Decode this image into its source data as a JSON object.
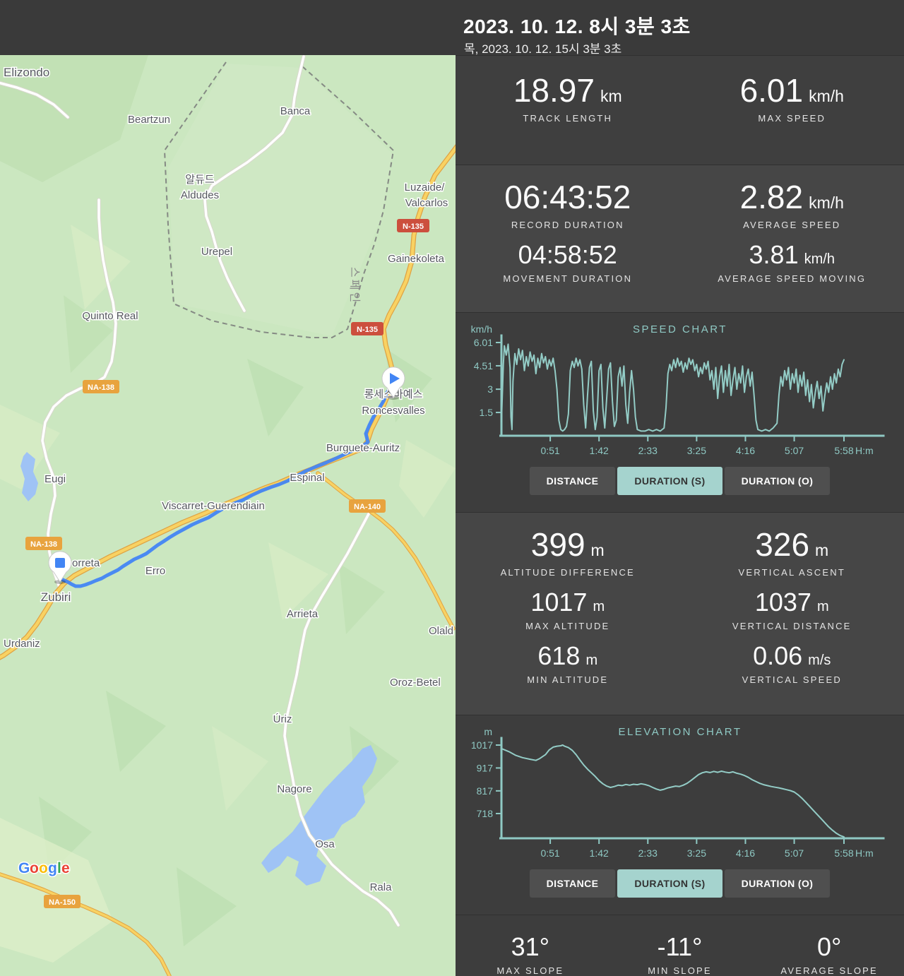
{
  "header": {
    "title": "2023. 10. 12. 8시 3분 3초",
    "subtitle": "목, 2023. 10. 12. 15시 3분 3초"
  },
  "stats": {
    "track_length": {
      "value": "18.97",
      "unit": "km",
      "label": "TRACK LENGTH"
    },
    "max_speed": {
      "value": "6.01",
      "unit": "km/h",
      "label": "MAX SPEED"
    },
    "record_duration": {
      "value": "06:43:52",
      "label": "RECORD DURATION"
    },
    "average_speed": {
      "value": "2.82",
      "unit": "km/h",
      "label": "AVERAGE SPEED"
    },
    "movement_duration": {
      "value": "04:58:52",
      "label": "MOVEMENT DURATION"
    },
    "average_speed_moving": {
      "value": "3.81",
      "unit": "km/h",
      "label": "AVERAGE SPEED MOVING"
    },
    "altitude_difference": {
      "value": "399",
      "unit": "m",
      "label": "ALTITUDE DIFFERENCE"
    },
    "vertical_ascent": {
      "value": "326",
      "unit": "m",
      "label": "VERTICAL ASCENT"
    },
    "max_altitude": {
      "value": "1017",
      "unit": "m",
      "label": "MAX ALTITUDE"
    },
    "vertical_distance": {
      "value": "1037",
      "unit": "m",
      "label": "VERTICAL DISTANCE"
    },
    "min_altitude": {
      "value": "618",
      "unit": "m",
      "label": "MIN ALTITUDE"
    },
    "vertical_speed": {
      "value": "0.06",
      "unit": "m/s",
      "label": "VERTICAL SPEED"
    },
    "max_slope": {
      "value": "31°",
      "label": "MAX SLOPE"
    },
    "min_slope": {
      "value": "-11°",
      "label": "MIN SLOPE"
    },
    "average_slope": {
      "value": "0°",
      "label": "AVERAGE SLOPE"
    }
  },
  "buttons": {
    "distance": "DISTANCE",
    "duration_s": "DURATION (S)",
    "duration_o": "DURATION (O)"
  },
  "chart_data": [
    {
      "type": "line",
      "title": "SPEED CHART",
      "unit": "km/h",
      "xlabel": "H:m",
      "vmin": 0,
      "vmax": 6.01,
      "xmax": 358,
      "yticks": [
        [
          6.01,
          "6.01"
        ],
        [
          4.51,
          "4.51"
        ],
        [
          3,
          "3"
        ],
        [
          1.5,
          "1.5"
        ]
      ],
      "xticks": [
        [
          51,
          "0:51"
        ],
        [
          102,
          "1:42"
        ],
        [
          153,
          "2:33"
        ],
        [
          204,
          "3:25"
        ],
        [
          255,
          "4:16"
        ],
        [
          306,
          "5:07"
        ],
        [
          358,
          "5:58"
        ]
      ],
      "points": [
        [
          0,
          0.9
        ],
        [
          2,
          4.6
        ],
        [
          3,
          5.8
        ],
        [
          5,
          5.2
        ],
        [
          7,
          5.9
        ],
        [
          9,
          4.4
        ],
        [
          10,
          1.2
        ],
        [
          11,
          0.4
        ],
        [
          12,
          3.5
        ],
        [
          14,
          5.3
        ],
        [
          16,
          4.6
        ],
        [
          18,
          5.6
        ],
        [
          20,
          4.9
        ],
        [
          22,
          5.5
        ],
        [
          24,
          4.2
        ],
        [
          26,
          5.1
        ],
        [
          28,
          4.5
        ],
        [
          30,
          5.4
        ],
        [
          32,
          4.8
        ],
        [
          34,
          5.2
        ],
        [
          36,
          4.0
        ],
        [
          38,
          5.0
        ],
        [
          40,
          4.4
        ],
        [
          42,
          5.3
        ],
        [
          44,
          4.7
        ],
        [
          46,
          5.1
        ],
        [
          48,
          4.3
        ],
        [
          50,
          4.9
        ],
        [
          52,
          4.5
        ],
        [
          54,
          5.0
        ],
        [
          56,
          4.2
        ],
        [
          58,
          3.0
        ],
        [
          60,
          1.0
        ],
        [
          62,
          0.4
        ],
        [
          64,
          0.3
        ],
        [
          66,
          0.4
        ],
        [
          68,
          0.6
        ],
        [
          70,
          1.4
        ],
        [
          72,
          4.2
        ],
        [
          74,
          4.8
        ],
        [
          76,
          4.4
        ],
        [
          78,
          5.0
        ],
        [
          80,
          4.5
        ],
        [
          82,
          4.9
        ],
        [
          84,
          4.3
        ],
        [
          86,
          2.0
        ],
        [
          88,
          0.5
        ],
        [
          90,
          2.6
        ],
        [
          92,
          4.4
        ],
        [
          94,
          4.8
        ],
        [
          96,
          1.6
        ],
        [
          98,
          0.4
        ],
        [
          100,
          1.2
        ],
        [
          102,
          4.2
        ],
        [
          104,
          4.6
        ],
        [
          106,
          1.8
        ],
        [
          108,
          0.5
        ],
        [
          110,
          2.4
        ],
        [
          112,
          4.3
        ],
        [
          114,
          4.7
        ],
        [
          116,
          2.2
        ],
        [
          118,
          0.6
        ],
        [
          120,
          1.0
        ],
        [
          122,
          3.8
        ],
        [
          124,
          4.4
        ],
        [
          126,
          3.2
        ],
        [
          128,
          4.5
        ],
        [
          130,
          2.0
        ],
        [
          132,
          0.8
        ],
        [
          134,
          2.8
        ],
        [
          136,
          4.2
        ],
        [
          138,
          3.0
        ],
        [
          140,
          1.2
        ],
        [
          142,
          0.4
        ],
        [
          146,
          0.3
        ],
        [
          150,
          0.3
        ],
        [
          154,
          0.4
        ],
        [
          158,
          0.3
        ],
        [
          162,
          0.4
        ],
        [
          166,
          0.3
        ],
        [
          170,
          0.5
        ],
        [
          172,
          1.8
        ],
        [
          174,
          4.0
        ],
        [
          176,
          4.6
        ],
        [
          178,
          4.2
        ],
        [
          180,
          4.9
        ],
        [
          182,
          4.4
        ],
        [
          184,
          5.0
        ],
        [
          186,
          4.5
        ],
        [
          188,
          4.8
        ],
        [
          190,
          4.1
        ],
        [
          192,
          4.7
        ],
        [
          194,
          4.3
        ],
        [
          196,
          5.0
        ],
        [
          198,
          4.6
        ],
        [
          200,
          4.9
        ],
        [
          202,
          4.2
        ],
        [
          204,
          4.6
        ],
        [
          206,
          3.8
        ],
        [
          208,
          4.4
        ],
        [
          210,
          4.0
        ],
        [
          212,
          4.7
        ],
        [
          214,
          4.3
        ],
        [
          216,
          4.8
        ],
        [
          218,
          3.6
        ],
        [
          220,
          4.2
        ],
        [
          222,
          3.0
        ],
        [
          224,
          4.4
        ],
        [
          226,
          2.4
        ],
        [
          228,
          3.8
        ],
        [
          230,
          4.5
        ],
        [
          232,
          2.8
        ],
        [
          234,
          4.2
        ],
        [
          236,
          3.2
        ],
        [
          238,
          4.6
        ],
        [
          240,
          2.6
        ],
        [
          242,
          3.6
        ],
        [
          244,
          4.4
        ],
        [
          246,
          3.0
        ],
        [
          248,
          4.0
        ],
        [
          250,
          3.4
        ],
        [
          252,
          4.5
        ],
        [
          254,
          2.8
        ],
        [
          256,
          3.8
        ],
        [
          258,
          4.3
        ],
        [
          260,
          3.2
        ],
        [
          262,
          4.1
        ],
        [
          264,
          2.6
        ],
        [
          266,
          1.0
        ],
        [
          268,
          0.4
        ],
        [
          272,
          0.3
        ],
        [
          276,
          0.4
        ],
        [
          280,
          0.3
        ],
        [
          284,
          0.5
        ],
        [
          288,
          0.8
        ],
        [
          290,
          2.6
        ],
        [
          292,
          3.8
        ],
        [
          294,
          3.2
        ],
        [
          296,
          4.2
        ],
        [
          298,
          3.6
        ],
        [
          300,
          4.4
        ],
        [
          302,
          3.0
        ],
        [
          304,
          4.0
        ],
        [
          306,
          3.4
        ],
        [
          308,
          4.3
        ],
        [
          310,
          2.8
        ],
        [
          312,
          3.9
        ],
        [
          314,
          3.2
        ],
        [
          316,
          4.1
        ],
        [
          318,
          2.6
        ],
        [
          320,
          3.6
        ],
        [
          322,
          2.2
        ],
        [
          324,
          3.3
        ],
        [
          326,
          1.8
        ],
        [
          328,
          2.8
        ],
        [
          330,
          3.5
        ],
        [
          332,
          2.4
        ],
        [
          334,
          3.2
        ],
        [
          336,
          1.6
        ],
        [
          338,
          2.6
        ],
        [
          340,
          3.4
        ],
        [
          342,
          2.8
        ],
        [
          344,
          3.8
        ],
        [
          346,
          3.0
        ],
        [
          348,
          4.0
        ],
        [
          350,
          3.4
        ],
        [
          352,
          4.3
        ],
        [
          354,
          3.8
        ],
        [
          356,
          4.6
        ],
        [
          358,
          4.9
        ]
      ]
    },
    {
      "type": "line",
      "title": "ELEVATION CHART",
      "unit": "m",
      "xlabel": "H:m",
      "vmin": 610,
      "vmax": 1017,
      "xmax": 358,
      "yticks": [
        [
          1017,
          "1017"
        ],
        [
          917,
          "917"
        ],
        [
          817,
          "817"
        ],
        [
          718,
          "718"
        ]
      ],
      "xticks": [
        [
          51,
          "0:51"
        ],
        [
          102,
          "1:42"
        ],
        [
          153,
          "2:33"
        ],
        [
          204,
          "3:25"
        ],
        [
          255,
          "4:16"
        ],
        [
          306,
          "5:07"
        ],
        [
          358,
          "5:58"
        ]
      ],
      "points": [
        [
          0,
          1002
        ],
        [
          8,
          988
        ],
        [
          15,
          972
        ],
        [
          22,
          962
        ],
        [
          30,
          955
        ],
        [
          36,
          950
        ],
        [
          40,
          958
        ],
        [
          46,
          975
        ],
        [
          50,
          996
        ],
        [
          54,
          1008
        ],
        [
          58,
          1012
        ],
        [
          62,
          1014
        ],
        [
          64,
          1017
        ],
        [
          66,
          1012
        ],
        [
          70,
          1006
        ],
        [
          74,
          994
        ],
        [
          78,
          975
        ],
        [
          82,
          952
        ],
        [
          86,
          930
        ],
        [
          90,
          912
        ],
        [
          94,
          896
        ],
        [
          98,
          880
        ],
        [
          102,
          862
        ],
        [
          106,
          848
        ],
        [
          110,
          838
        ],
        [
          114,
          832
        ],
        [
          118,
          836
        ],
        [
          122,
          842
        ],
        [
          126,
          840
        ],
        [
          130,
          845
        ],
        [
          134,
          842
        ],
        [
          138,
          846
        ],
        [
          142,
          844
        ],
        [
          146,
          848
        ],
        [
          150,
          845
        ],
        [
          154,
          840
        ],
        [
          158,
          832
        ],
        [
          162,
          825
        ],
        [
          166,
          820
        ],
        [
          170,
          824
        ],
        [
          174,
          830
        ],
        [
          178,
          834
        ],
        [
          182,
          838
        ],
        [
          186,
          836
        ],
        [
          190,
          842
        ],
        [
          194,
          850
        ],
        [
          198,
          862
        ],
        [
          202,
          875
        ],
        [
          206,
          888
        ],
        [
          210,
          896
        ],
        [
          214,
          900
        ],
        [
          218,
          897
        ],
        [
          222,
          902
        ],
        [
          226,
          898
        ],
        [
          230,
          903
        ],
        [
          234,
          899
        ],
        [
          238,
          896
        ],
        [
          242,
          900
        ],
        [
          246,
          894
        ],
        [
          250,
          890
        ],
        [
          254,
          884
        ],
        [
          258,
          876
        ],
        [
          262,
          866
        ],
        [
          266,
          858
        ],
        [
          270,
          850
        ],
        [
          274,
          844
        ],
        [
          278,
          840
        ],
        [
          282,
          836
        ],
        [
          286,
          833
        ],
        [
          290,
          830
        ],
        [
          294,
          826
        ],
        [
          298,
          822
        ],
        [
          302,
          818
        ],
        [
          306,
          812
        ],
        [
          310,
          800
        ],
        [
          314,
          785
        ],
        [
          318,
          768
        ],
        [
          322,
          750
        ],
        [
          326,
          732
        ],
        [
          330,
          714
        ],
        [
          334,
          696
        ],
        [
          338,
          678
        ],
        [
          342,
          660
        ],
        [
          346,
          645
        ],
        [
          350,
          632
        ],
        [
          354,
          622
        ],
        [
          358,
          616
        ]
      ]
    }
  ],
  "map": {
    "country_label": "스페인",
    "labels": [
      {
        "text": "Elizondo"
      },
      {
        "text": "Beartzun"
      },
      {
        "text": "Banca"
      },
      {
        "text": "알듀드"
      },
      {
        "text": "Aldudes"
      },
      {
        "text": "Luzaide/"
      },
      {
        "text": "Valcarlos"
      },
      {
        "text": "Urepel"
      },
      {
        "text": "Gainekoleta"
      },
      {
        "text": "Quinto Real"
      },
      {
        "text": "롱세스바예스"
      },
      {
        "text": "Roncesvalles"
      },
      {
        "text": "Burguete-Auritz"
      },
      {
        "text": "Espinal"
      },
      {
        "text": "Eugi"
      },
      {
        "text": "Viscarret-Guerendiain"
      },
      {
        "text": "orreta"
      },
      {
        "text": "Erro"
      },
      {
        "text": "Zubiri"
      },
      {
        "text": "Arrieta"
      },
      {
        "text": "Olald"
      },
      {
        "text": "Urdaniz"
      },
      {
        "text": "Oroz-Betel"
      },
      {
        "text": "Úriz"
      },
      {
        "text": "Nagore"
      },
      {
        "text": "Osa"
      },
      {
        "text": "Rala"
      }
    ],
    "badges": [
      "N-135",
      "N-135",
      "NA-138",
      "NA-140",
      "NA-138",
      "NA-150"
    ],
    "google": [
      "G",
      "o",
      "o",
      "g",
      "l",
      "e"
    ]
  },
  "colors": {
    "accent_teal": "#93ccc6",
    "route_blue": "#4285f4",
    "selected_button_bg": "#a5d3ce",
    "panel_bg": "#3a3a3a",
    "map_green": "#cbe7c0",
    "water_blue": "#9fc3f5"
  }
}
